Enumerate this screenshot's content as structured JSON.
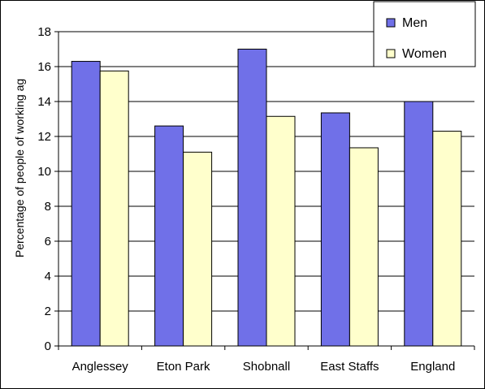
{
  "chart_data": {
    "type": "bar",
    "title": "",
    "xlabel": "",
    "ylabel": "Percentage of people of working ag",
    "categories": [
      "Anglessey",
      "Eton Park",
      "Shobnall",
      "East Staffs",
      "England"
    ],
    "series": [
      {
        "name": "Men",
        "color": "#7070e8",
        "values": [
          16.3,
          12.6,
          17.0,
          13.35,
          14.0
        ]
      },
      {
        "name": "Women",
        "color": "#ffffcc",
        "values": [
          15.75,
          11.1,
          13.15,
          11.35,
          12.3
        ]
      }
    ],
    "ylim": [
      0,
      18
    ],
    "yticks": [
      "0",
      "2",
      "4",
      "6",
      "8",
      "10",
      "12",
      "14",
      "16",
      "18"
    ],
    "grid": true,
    "legend_position": "top-right"
  }
}
